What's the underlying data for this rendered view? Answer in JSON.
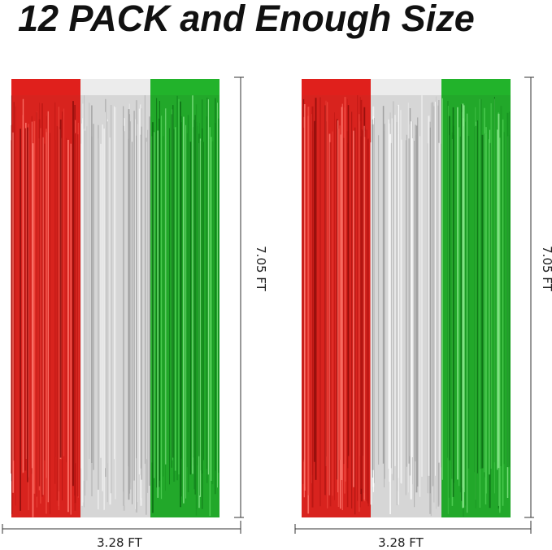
{
  "title": "12 PACK and Enough Size",
  "panels": [
    {
      "height_label": "7.05 FT",
      "width_label": "3.28 FT"
    },
    {
      "height_label": "7.05 FT",
      "width_label": "3.28 FT"
    }
  ]
}
